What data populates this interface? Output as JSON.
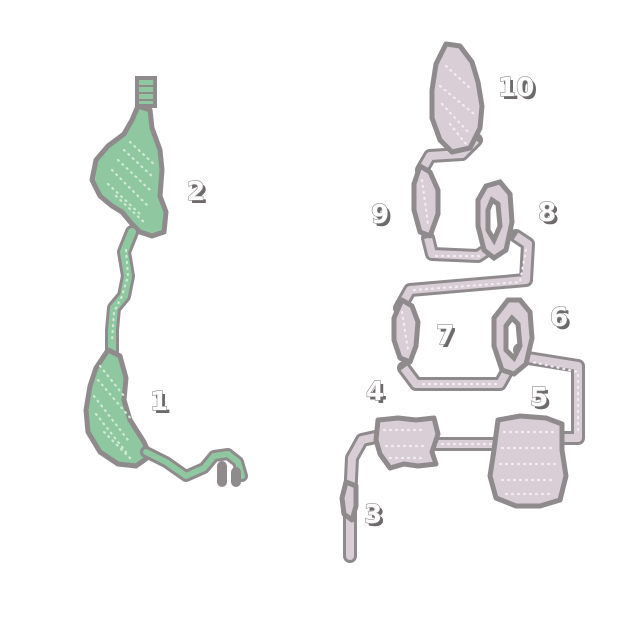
{
  "map": {
    "colors": {
      "background": "#ffffff",
      "outline": "#8f8b8c",
      "green_fill": "#8fc7a0",
      "green_dots": "#cfe9d4",
      "purple_fill": "#d9ced6",
      "purple_dots": "#f2ecf0"
    },
    "areas": [
      {
        "id": "a1",
        "label": "1"
      },
      {
        "id": "a2",
        "label": "2"
      },
      {
        "id": "a3",
        "label": "3"
      },
      {
        "id": "a4",
        "label": "4"
      },
      {
        "id": "a5",
        "label": "5"
      },
      {
        "id": "a6",
        "label": "6"
      },
      {
        "id": "a7",
        "label": "7"
      },
      {
        "id": "a8",
        "label": "8"
      },
      {
        "id": "a9",
        "label": "9"
      },
      {
        "id": "a10",
        "label": "10"
      }
    ]
  }
}
